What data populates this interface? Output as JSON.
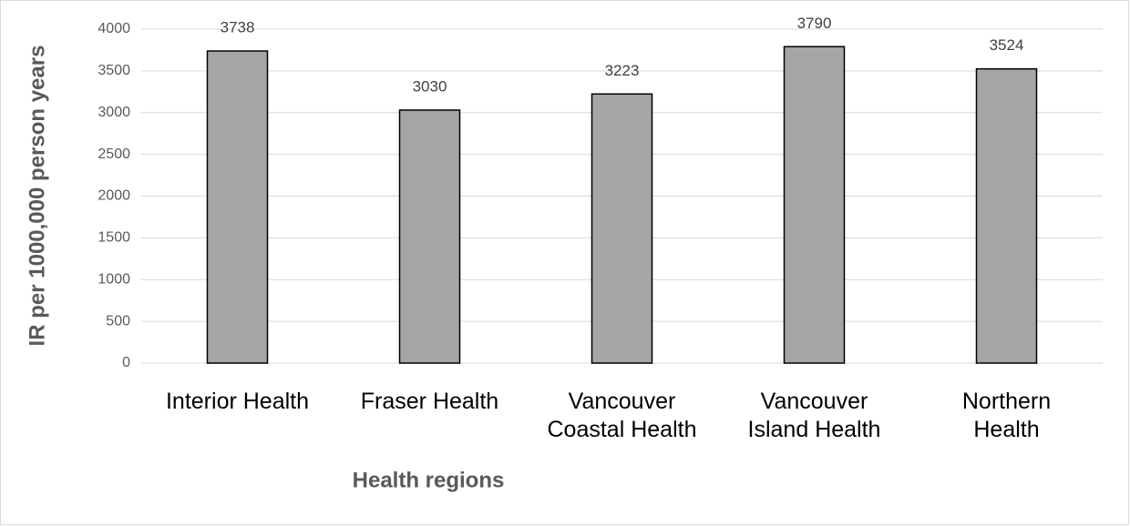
{
  "chart_data": {
    "type": "bar",
    "categories": [
      "Interior Health",
      "Fraser Health",
      "Vancouver\nCoastal Health",
      "Vancouver\nIsland Health",
      "Northern\nHealth"
    ],
    "values": [
      3738,
      3030,
      3223,
      3790,
      3524
    ],
    "color": "#a5a5a5",
    "x_label": "Health regions",
    "y_label": "IR per 1000,000 person years",
    "ylim": [
      0,
      4000
    ],
    "yticks": [
      0,
      500,
      1000,
      1500,
      2000,
      2500,
      3000,
      3500,
      4000
    ],
    "grid": true
  }
}
